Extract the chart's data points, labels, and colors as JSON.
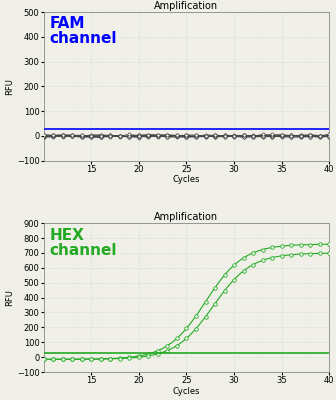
{
  "title": "Amplification",
  "xlabel": "Cycles",
  "ylabel": "RFU",
  "fam_ylim": [
    -100,
    500
  ],
  "fam_yticks": [
    -100,
    0,
    100,
    200,
    300,
    400,
    500
  ],
  "hex_ylim": [
    -100,
    900
  ],
  "hex_yticks": [
    -100,
    0,
    100,
    200,
    300,
    400,
    500,
    600,
    700,
    800,
    900
  ],
  "xlim": [
    10,
    40
  ],
  "xticks": [
    15,
    20,
    25,
    30,
    35,
    40
  ],
  "fam_label": "FAM\nchannel",
  "hex_label": "HEX\nchannel",
  "fam_color": "#0000ff",
  "hex_color": "#22aa22",
  "fam_threshold": 28,
  "hex_threshold": 28,
  "background_color": "#f0f0e8",
  "grid_color": "#cccccc",
  "title_fontsize": 7,
  "label_fontsize": 6,
  "tick_fontsize": 6,
  "channel_fontsize": 11
}
